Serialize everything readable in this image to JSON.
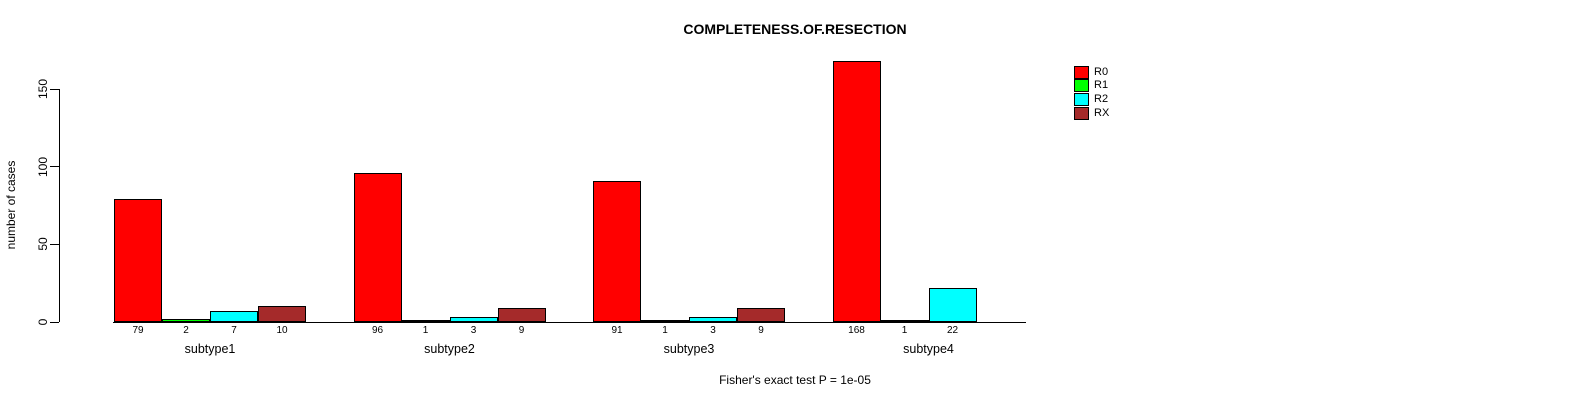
{
  "chart_data": {
    "type": "bar",
    "grouped": true,
    "title": "COMPLETENESS.OF.RESECTION",
    "ylabel": "number of cases",
    "xlabel": "",
    "footnote": "Fisher's exact test P = 1e-05",
    "categories": [
      "subtype1",
      "subtype2",
      "subtype3",
      "subtype4"
    ],
    "series": [
      {
        "name": "R0",
        "color": "#FF0000",
        "values": [
          79,
          96,
          91,
          168
        ]
      },
      {
        "name": "R1",
        "color": "#00FF00",
        "values": [
          2,
          1,
          1,
          1
        ]
      },
      {
        "name": "R2",
        "color": "#00FFFF",
        "values": [
          7,
          3,
          3,
          22
        ]
      },
      {
        "name": "RX",
        "color": "#A52A2A",
        "values": [
          10,
          9,
          9,
          null
        ]
      }
    ],
    "bar_value_labels_shown": true,
    "yticks": [
      0,
      50,
      100,
      150
    ],
    "ylim": [
      0,
      175
    ],
    "grid": false,
    "legend_position": "topright",
    "axis_color": "#000000",
    "background_color": "#FFFFFF"
  }
}
